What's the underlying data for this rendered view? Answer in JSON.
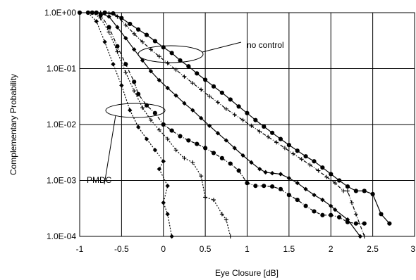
{
  "chart_data": {
    "type": "line",
    "title": "",
    "xlabel": "Eye Closure [dB]",
    "ylabel": "Complementary Probability",
    "xlim": [
      -1,
      3
    ],
    "ylim": [
      0.0001,
      1
    ],
    "yscale": "log",
    "grid": true,
    "legend": "none",
    "x_ticks": [
      "-1",
      "-0.5",
      "0",
      "0.5",
      "1",
      "1.5",
      "2",
      "2.5",
      "3"
    ],
    "y_ticks": [
      "1.0E+00",
      "1.0E-01",
      "1.0E-02",
      "1.0E-03",
      "1.0E-04"
    ],
    "annotations": [
      {
        "text": "no control",
        "target_x": 0.2,
        "target_y": 0.2
      },
      {
        "text": "PMDC",
        "target_x": -0.25,
        "target_y": 0.018
      }
    ],
    "series": [
      {
        "marker": "circle",
        "line": "solid",
        "points": [
          [
            -1,
            1
          ],
          [
            -0.9,
            1
          ],
          [
            -0.8,
            1
          ],
          [
            -0.7,
            1
          ],
          [
            -0.6,
            0.97
          ],
          [
            -0.5,
            0.8
          ],
          [
            -0.4,
            0.63
          ],
          [
            -0.3,
            0.5
          ],
          [
            -0.2,
            0.4
          ],
          [
            -0.1,
            0.31
          ],
          [
            0,
            0.24
          ],
          [
            0.1,
            0.19
          ],
          [
            0.2,
            0.14
          ],
          [
            0.3,
            0.11
          ],
          [
            0.4,
            0.082
          ],
          [
            0.5,
            0.063
          ],
          [
            0.6,
            0.048
          ],
          [
            0.7,
            0.037
          ],
          [
            0.8,
            0.028
          ],
          [
            0.9,
            0.021
          ],
          [
            1,
            0.016
          ],
          [
            1.1,
            0.012
          ],
          [
            1.2,
            0.0092
          ],
          [
            1.3,
            0.0071
          ],
          [
            1.4,
            0.0055
          ],
          [
            1.5,
            0.0043
          ],
          [
            1.6,
            0.0034
          ],
          [
            1.7,
            0.0027
          ],
          [
            1.8,
            0.0022
          ],
          [
            1.9,
            0.0017
          ],
          [
            2,
            0.0013
          ],
          [
            2.1,
            0.001
          ],
          [
            2.2,
            0.00078
          ],
          [
            2.3,
            0.00065
          ],
          [
            2.4,
            0.00065
          ],
          [
            2.5,
            0.00057
          ],
          [
            2.6,
            0.00025
          ],
          [
            2.7,
            0.00017
          ]
        ]
      },
      {
        "marker": "plus",
        "line": "dashdot",
        "points": [
          [
            -0.75,
            1
          ],
          [
            -0.65,
            0.97
          ],
          [
            -0.55,
            0.85
          ],
          [
            -0.45,
            0.6
          ],
          [
            -0.35,
            0.42
          ],
          [
            -0.25,
            0.3
          ],
          [
            -0.15,
            0.22
          ],
          [
            -0.05,
            0.165
          ],
          [
            0.05,
            0.125
          ],
          [
            0.15,
            0.095
          ],
          [
            0.25,
            0.072
          ],
          [
            0.35,
            0.055
          ],
          [
            0.45,
            0.042
          ],
          [
            0.55,
            0.032
          ],
          [
            0.65,
            0.025
          ],
          [
            0.75,
            0.019
          ],
          [
            0.85,
            0.015
          ],
          [
            0.95,
            0.012
          ],
          [
            1.05,
            0.0095
          ],
          [
            1.15,
            0.0075
          ],
          [
            1.25,
            0.006
          ],
          [
            1.35,
            0.0048
          ],
          [
            1.45,
            0.0038
          ],
          [
            1.55,
            0.003
          ],
          [
            1.65,
            0.0024
          ],
          [
            1.75,
            0.0019
          ],
          [
            1.85,
            0.0015
          ],
          [
            1.95,
            0.00115
          ],
          [
            2.05,
            0.0009
          ],
          [
            2.15,
            0.00065
          ],
          [
            2.2,
            0.00065
          ],
          [
            2.25,
            0.0004
          ],
          [
            2.3,
            0.00025
          ],
          [
            2.4,
            0.0001
          ]
        ]
      },
      {
        "marker": "diamond",
        "line": "solid",
        "points": [
          [
            -0.85,
            1
          ],
          [
            -0.75,
            0.97
          ],
          [
            -0.65,
            0.85
          ],
          [
            -0.55,
            0.55
          ],
          [
            -0.45,
            0.35
          ],
          [
            -0.35,
            0.22
          ],
          [
            -0.25,
            0.14
          ],
          [
            -0.15,
            0.09
          ],
          [
            -0.05,
            0.062
          ],
          [
            0.05,
            0.045
          ],
          [
            0.15,
            0.033
          ],
          [
            0.25,
            0.024
          ],
          [
            0.35,
            0.018
          ],
          [
            0.45,
            0.013
          ],
          [
            0.55,
            0.0095
          ],
          [
            0.65,
            0.007
          ],
          [
            0.75,
            0.0052
          ],
          [
            0.85,
            0.0038
          ],
          [
            0.95,
            0.0028
          ],
          [
            1.05,
            0.0021
          ],
          [
            1.15,
            0.0016
          ],
          [
            1.22,
            0.0014
          ],
          [
            1.3,
            0.00135
          ],
          [
            1.4,
            0.0013
          ],
          [
            1.5,
            0.0011
          ],
          [
            1.6,
            0.0009
          ],
          [
            1.7,
            0.0007
          ],
          [
            1.8,
            0.00055
          ],
          [
            1.9,
            0.00045
          ],
          [
            2,
            0.00035
          ],
          [
            2.05,
            0.0003
          ],
          [
            2.2,
            0.0002
          ],
          [
            2.35,
            0.0001
          ]
        ]
      },
      {
        "marker": "circle",
        "line": "dashdot",
        "points": [
          [
            -0.85,
            1
          ],
          [
            -0.75,
            0.9
          ],
          [
            -0.65,
            0.55
          ],
          [
            -0.55,
            0.25
          ],
          [
            -0.45,
            0.12
          ],
          [
            -0.35,
            0.058
          ],
          [
            -0.3,
            0.035
          ],
          [
            -0.2,
            0.022
          ],
          [
            -0.1,
            0.016
          ],
          [
            0,
            0.01
          ],
          [
            0.1,
            0.0078
          ],
          [
            0.2,
            0.0062
          ],
          [
            0.3,
            0.0052
          ],
          [
            0.4,
            0.0045
          ],
          [
            0.5,
            0.0038
          ],
          [
            0.6,
            0.0031
          ],
          [
            0.7,
            0.0025
          ],
          [
            0.8,
            0.002
          ],
          [
            0.9,
            0.0015
          ],
          [
            1,
            0.0009
          ],
          [
            1.1,
            0.0008
          ],
          [
            1.2,
            0.0008
          ],
          [
            1.3,
            0.00078
          ],
          [
            1.4,
            0.0007
          ],
          [
            1.5,
            0.00055
          ],
          [
            1.6,
            0.00045
          ],
          [
            1.7,
            0.00035
          ],
          [
            1.8,
            0.00028
          ],
          [
            1.9,
            0.00024
          ],
          [
            2,
            0.00024
          ],
          [
            2.1,
            0.00022
          ],
          [
            2.2,
            0.00018
          ],
          [
            2.3,
            0.00017
          ],
          [
            2.4,
            0.00017
          ]
        ]
      },
      {
        "marker": "plus",
        "line": "dotted",
        "points": [
          [
            -0.85,
            1
          ],
          [
            -0.75,
            0.8
          ],
          [
            -0.65,
            0.45
          ],
          [
            -0.55,
            0.2
          ],
          [
            -0.45,
            0.085
          ],
          [
            -0.35,
            0.04
          ],
          [
            -0.25,
            0.02
          ],
          [
            -0.15,
            0.012
          ],
          [
            -0.05,
            0.008
          ],
          [
            0.05,
            0.0055
          ],
          [
            0.15,
            0.0035
          ],
          [
            0.25,
            0.0025
          ],
          [
            0.35,
            0.0021
          ],
          [
            0.45,
            0.0012
          ],
          [
            0.5,
            0.0005
          ],
          [
            0.6,
            0.00045
          ],
          [
            0.7,
            0.00025
          ],
          [
            0.75,
            0.0002
          ],
          [
            0.8,
            0.0001
          ]
        ]
      },
      {
        "marker": "diamond",
        "line": "dotted",
        "points": [
          [
            -0.9,
            1
          ],
          [
            -0.8,
            0.7
          ],
          [
            -0.7,
            0.3
          ],
          [
            -0.6,
            0.12
          ],
          [
            -0.5,
            0.05
          ],
          [
            -0.4,
            0.018
          ],
          [
            -0.3,
            0.009
          ],
          [
            -0.2,
            0.0055
          ],
          [
            -0.1,
            0.0035
          ],
          [
            0,
            0.0022
          ],
          [
            -0.05,
            0.0016
          ],
          [
            0.05,
            0.0008
          ],
          [
            0,
            0.0004
          ],
          [
            0.05,
            0.00025
          ],
          [
            0.1,
            0.0001
          ]
        ]
      }
    ]
  }
}
